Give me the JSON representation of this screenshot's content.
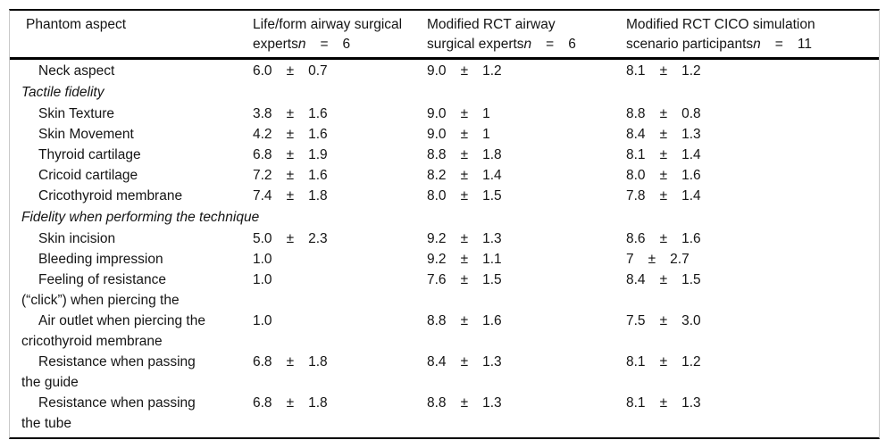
{
  "pm_symbol": "±",
  "colors": {
    "rule": "#000000",
    "frame_side": "#c9c9c9",
    "text": "#151515",
    "background": "#ffffff"
  },
  "table": {
    "header": {
      "col1": "Phantom aspect",
      "col2": {
        "line1": "Life/form airway surgical",
        "line2": "experts",
        "n_symbol": "n",
        "eq": "=",
        "n_value": "6"
      },
      "col3": {
        "line1": "Modified RCT airway",
        "line2": "surgical experts",
        "n_symbol": "n",
        "eq": "=",
        "n_value": "6"
      },
      "col4": {
        "line1": "Modified RCT CICO simulation",
        "line2": "scenario participants",
        "n_symbol": "n",
        "eq": "=",
        "n_value": "11"
      }
    },
    "rows": [
      {
        "type": "item",
        "label": "Neck aspect",
        "cells": [
          {
            "m": "6.0",
            "s": "0.7"
          },
          {
            "m": "9.0",
            "s": "1.2"
          },
          {
            "m": "8.1",
            "s": "1.2"
          }
        ]
      },
      {
        "type": "section",
        "label": "Tactile fidelity"
      },
      {
        "type": "item",
        "label": "Skin Texture",
        "cells": [
          {
            "m": "3.8",
            "s": "1.6"
          },
          {
            "m": "9.0",
            "s": "1"
          },
          {
            "m": "8.8",
            "s": "0.8"
          }
        ]
      },
      {
        "type": "item",
        "label": "Skin Movement",
        "cells": [
          {
            "m": "4.2",
            "s": "1.6"
          },
          {
            "m": "9.0",
            "s": "1"
          },
          {
            "m": "8.4",
            "s": "1.3"
          }
        ]
      },
      {
        "type": "item",
        "label": "Thyroid cartilage",
        "cells": [
          {
            "m": "6.8",
            "s": "1.9"
          },
          {
            "m": "8.8",
            "s": "1.8"
          },
          {
            "m": "8.1",
            "s": "1.4"
          }
        ]
      },
      {
        "type": "item",
        "label": "Cricoid cartilage",
        "cells": [
          {
            "m": "7.2",
            "s": "1.6"
          },
          {
            "m": "8.2",
            "s": "1.4"
          },
          {
            "m": "8.0",
            "s": "1.6"
          }
        ]
      },
      {
        "type": "item",
        "label": "Cricothyroid membrane",
        "cells": [
          {
            "m": "7.4",
            "s": "1.8"
          },
          {
            "m": "8.0",
            "s": "1.5"
          },
          {
            "m": "7.8",
            "s": "1.4"
          }
        ]
      },
      {
        "type": "section",
        "label": "Fidelity when performing the technique"
      },
      {
        "type": "item",
        "label": "Skin incision",
        "cells": [
          {
            "m": "5.0",
            "s": "2.3"
          },
          {
            "m": "9.2",
            "s": "1.3"
          },
          {
            "m": "8.6",
            "s": "1.6"
          }
        ]
      },
      {
        "type": "item",
        "label": "Bleeding impression",
        "cells": [
          {
            "m": "1.0"
          },
          {
            "m": "9.2",
            "s": "1.1"
          },
          {
            "m": "7",
            "s": "2.7"
          }
        ]
      },
      {
        "type": "item",
        "label": "Feeling of resistance",
        "label2": "(“click”) when piercing the",
        "cells": [
          {
            "m": "1.0"
          },
          {
            "m": "7.6",
            "s": "1.5"
          },
          {
            "m": "8.4",
            "s": "1.5"
          }
        ]
      },
      {
        "type": "item",
        "label": "Air outlet when piercing the",
        "label2": "cricothyroid membrane",
        "cells": [
          {
            "m": "1.0"
          },
          {
            "m": "8.8",
            "s": "1.6"
          },
          {
            "m": "7.5",
            "s": "3.0"
          }
        ]
      },
      {
        "type": "item",
        "label": "Resistance when passing",
        "label2": "the guide",
        "cells": [
          {
            "m": "6.8",
            "s": "1.8"
          },
          {
            "m": "8.4",
            "s": "1.3"
          },
          {
            "m": "8.1",
            "s": "1.2"
          }
        ]
      },
      {
        "type": "item",
        "label": "Resistance when passing",
        "label2": "the tube",
        "cells": [
          {
            "m": "6.8",
            "s": "1.8"
          },
          {
            "m": "8.8",
            "s": "1.3"
          },
          {
            "m": "8.1",
            "s": "1.3"
          }
        ]
      }
    ]
  }
}
